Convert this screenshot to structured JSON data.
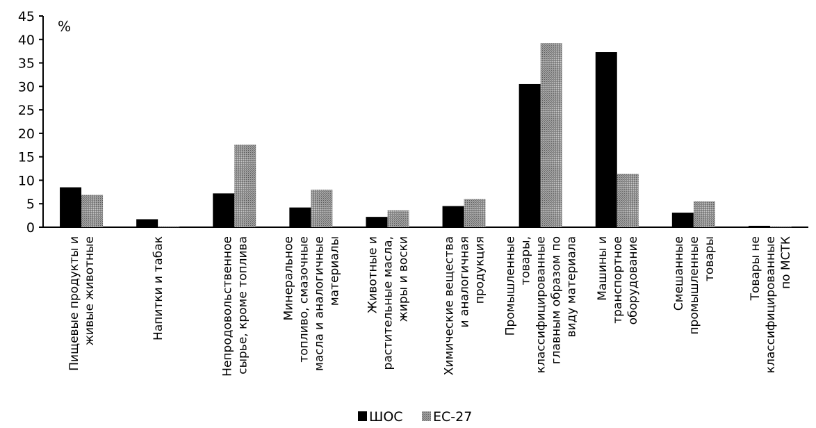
{
  "chart_data": {
    "type": "bar",
    "unit_label": "%",
    "ylim": [
      0,
      45
    ],
    "yticks": [
      0,
      5,
      10,
      15,
      20,
      25,
      30,
      35,
      40,
      45
    ],
    "grid": false,
    "legend_position": "bottom-center",
    "categories": [
      [
        "Пищевые продукты и",
        "живые животные"
      ],
      [
        "Напитки и табак"
      ],
      [
        "Непродовольственное",
        "сырье, кроме топлива"
      ],
      [
        "Минеральное",
        "топливо, смазочные",
        "масла и аналогичные",
        "материалы"
      ],
      [
        "Животные и",
        "растительные масла,",
        "жиры и воски"
      ],
      [
        "Химические вещества",
        "и аналогичная",
        "продукция"
      ],
      [
        "Промышленные",
        "товары,",
        "классифицированные",
        "главным образом по",
        "виду материала"
      ],
      [
        "Машины и",
        "транспортное",
        "оборудование"
      ],
      [
        "Смешанные",
        "промышленные",
        "товары"
      ],
      [
        "Товары не",
        "классифицированные",
        "по МСТК"
      ]
    ],
    "series": [
      {
        "name": "ШОС",
        "color": "#000000",
        "values": [
          8.5,
          1.7,
          7.2,
          4.2,
          2.2,
          4.5,
          30.5,
          37.3,
          3.1,
          0.3
        ]
      },
      {
        "name": "ЕС-27",
        "color": "#8c8c8c",
        "values": [
          6.9,
          0.1,
          17.6,
          8.0,
          3.6,
          6.0,
          39.2,
          11.4,
          5.5,
          0.1
        ]
      }
    ]
  }
}
